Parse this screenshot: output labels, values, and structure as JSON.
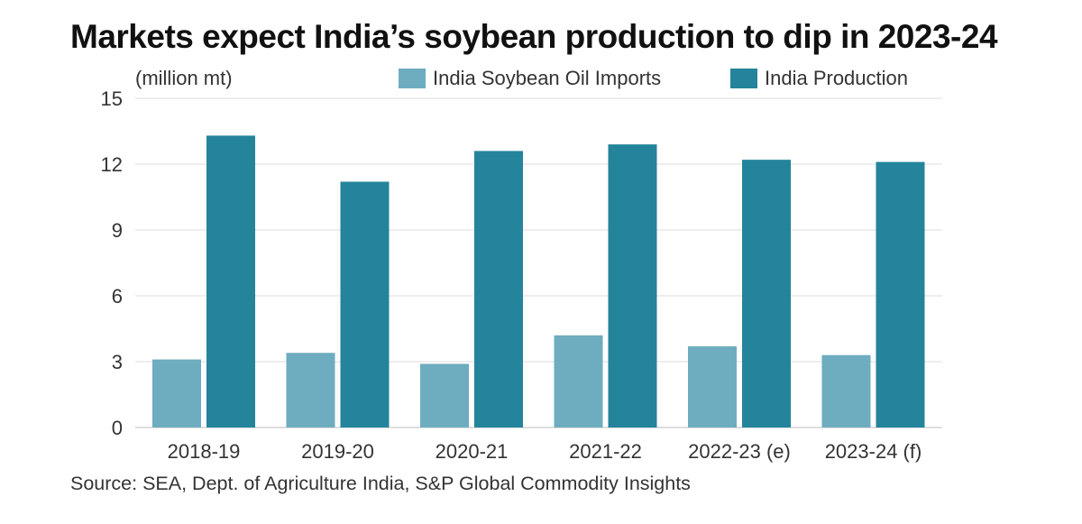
{
  "title": "Markets expect India’s soybean production to dip in 2023-24",
  "unit_label": "(million mt)",
  "source": "Source: SEA, Dept. of Agriculture India, S&P Global Commodity Insights",
  "colors": {
    "imports": "#6eacbf",
    "production": "#24849b",
    "grid": "#dddddd"
  },
  "chart_data": {
    "type": "bar",
    "title": "Markets expect India’s soybean production to dip in 2023-24",
    "ylabel": "(million mt)",
    "xlabel": "",
    "categories": [
      "2018-19",
      "2019-20",
      "2020-21",
      "2021-22",
      "2022-23 (e)",
      "2023-24 (f)"
    ],
    "series": [
      {
        "name": "India Soybean Oil Imports",
        "values": [
          3.1,
          3.4,
          2.9,
          4.2,
          3.7,
          3.3
        ]
      },
      {
        "name": "India Production",
        "values": [
          13.3,
          11.2,
          12.6,
          12.9,
          12.2,
          12.1
        ]
      }
    ],
    "ylim": [
      0,
      15
    ],
    "yticks": [
      0,
      3,
      6,
      9,
      12,
      15
    ],
    "grid": true,
    "legend": "top-right"
  }
}
